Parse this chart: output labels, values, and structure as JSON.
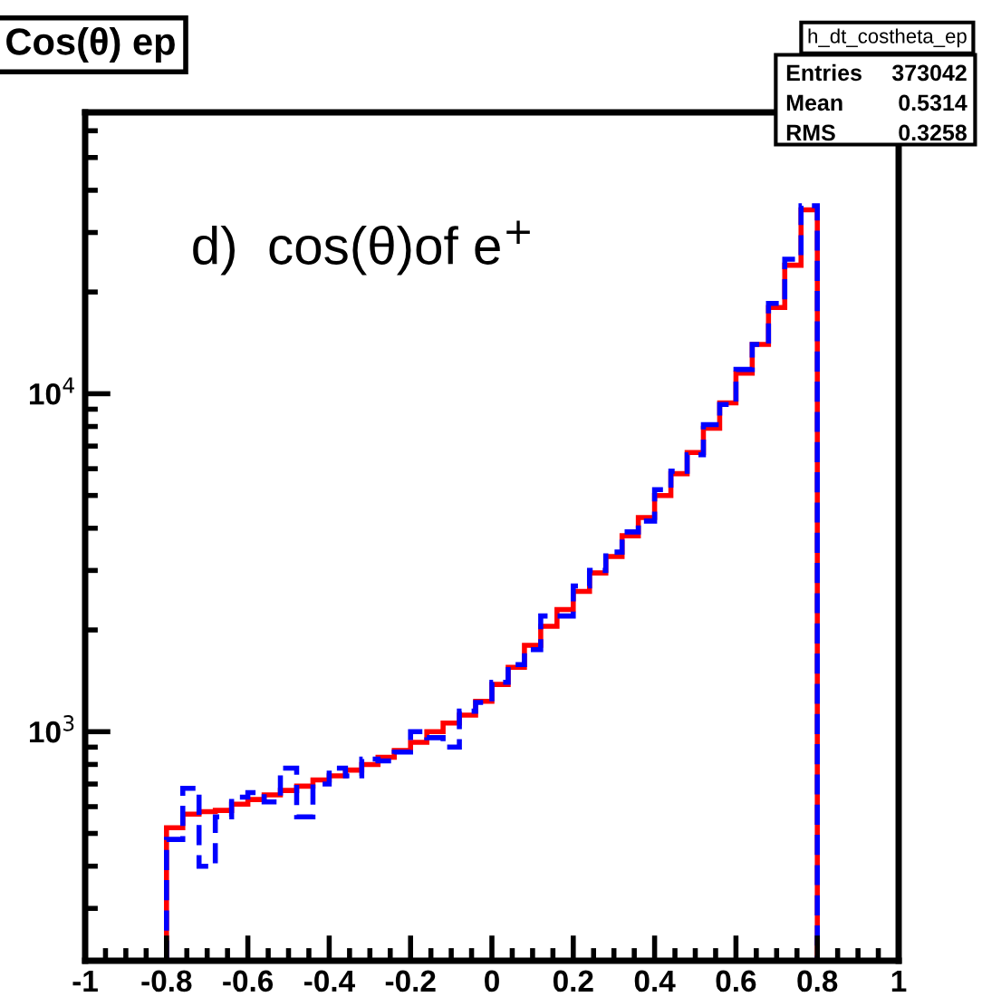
{
  "chart_data": {
    "type": "histogram",
    "title": "Cos(θ) ep",
    "annotations": [
      "h_dt_costheta_ep",
      "Entries 373042",
      "Mean 0.5314",
      "RMS 0.3258",
      "d)  cos(θ)of e$^{+}$"
    ],
    "bins": [
      -0.8,
      -0.76,
      -0.72,
      -0.68,
      -0.64,
      -0.6,
      -0.56,
      -0.52,
      -0.48,
      -0.44,
      -0.4,
      -0.36,
      -0.32,
      -0.28,
      -0.24,
      -0.2,
      -0.16,
      -0.12,
      -0.08,
      -0.04,
      0,
      0.04,
      0.08,
      0.12,
      0.16,
      0.2,
      0.24,
      0.28,
      0.32,
      0.36,
      0.4,
      0.44,
      0.48,
      0.52,
      0.56,
      0.6,
      0.64,
      0.68,
      0.72,
      0.76,
      0.8
    ],
    "series": [
      {
        "color": "#ff0000",
        "line_style": "solid",
        "values": [
          520,
          570,
          580,
          585,
          610,
          630,
          650,
          670,
          690,
          720,
          740,
          770,
          800,
          840,
          880,
          930,
          1000,
          1060,
          1120,
          1230,
          1380,
          1550,
          1800,
          2050,
          2300,
          2600,
          2950,
          3300,
          3800,
          4300,
          5000,
          5800,
          6700,
          7900,
          9400,
          11500,
          14000,
          18000,
          24000,
          35000
        ]
      },
      {
        "color": "#0000ff",
        "line_style": "dashed",
        "values": [
          480,
          680,
          400,
          560,
          640,
          660,
          620,
          780,
          560,
          700,
          780,
          740,
          830,
          820,
          870,
          1000,
          960,
          900,
          1150,
          1220,
          1400,
          1580,
          1750,
          2200,
          2200,
          2700,
          3000,
          3400,
          3900,
          4200,
          5200,
          5900,
          6600,
          8100,
          9300,
          11800,
          14000,
          18500,
          25000,
          36000
        ]
      }
    ],
    "log": "y",
    "xlim": [
      -1,
      1
    ],
    "xticks": [
      -1,
      -0.8,
      -0.6,
      -0.4,
      -0.2,
      0,
      0.2,
      0.4,
      0.6,
      0.8,
      1
    ],
    "ylim": [
      210,
      68000
    ],
    "yticks": [
      {
        "value": 1000,
        "label": "10$^{3}$"
      },
      {
        "value": 10000,
        "label": "10$^{4}$"
      }
    ],
    "grid": false,
    "legend": false
  }
}
